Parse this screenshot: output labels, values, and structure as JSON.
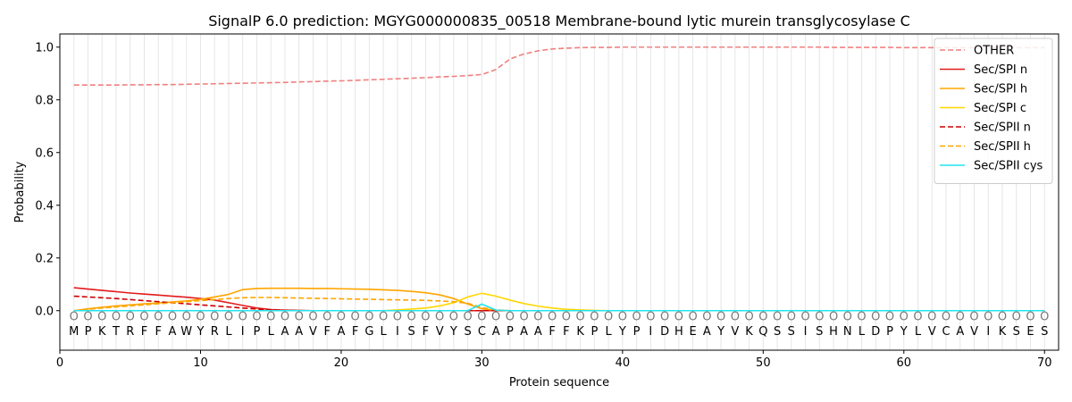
{
  "chart_data": {
    "type": "line",
    "title": "SignalP 6.0 prediction: MGYG000000835_00518 Membrane-bound lytic murein transglycosylase C",
    "xlabel": "Protein sequence",
    "ylabel": "Probability",
    "xlim": [
      0,
      71
    ],
    "ylim": [
      -0.15,
      1.05
    ],
    "xticks": [
      0,
      10,
      20,
      30,
      40,
      50,
      60,
      70
    ],
    "yticks": [
      0.0,
      0.2,
      0.4,
      0.6,
      0.8,
      1.0
    ],
    "xtick_labels": [
      "0",
      "10",
      "20",
      "30",
      "40",
      "50",
      "60",
      "70"
    ],
    "ytick_labels": [
      "0.0",
      "0.2",
      "0.4",
      "0.6",
      "0.8",
      "1.0"
    ],
    "grid": "vertical lines at each residue",
    "legend_position": "top-right",
    "sequence": [
      "M",
      "P",
      "K",
      "T",
      "R",
      "F",
      "F",
      "A",
      "W",
      "Y",
      "R",
      "L",
      "I",
      "P",
      "L",
      "A",
      "A",
      "V",
      "F",
      "A",
      "F",
      "G",
      "L",
      "I",
      "S",
      "F",
      "V",
      "Y",
      "S",
      "C",
      "A",
      "P",
      "A",
      "A",
      "F",
      "F",
      "K",
      "P",
      "L",
      "Y",
      "P",
      "I",
      "D",
      "H",
      "E",
      "A",
      "Y",
      "V",
      "K",
      "Q",
      "S",
      "S",
      "I",
      "S",
      "H",
      "N",
      "L",
      "D",
      "P",
      "Y",
      "L",
      "V",
      "C",
      "A",
      "V",
      "I",
      "K",
      "S",
      "E",
      "S"
    ],
    "predicted_classes": [
      "O",
      "O",
      "O",
      "O",
      "O",
      "O",
      "O",
      "O",
      "O",
      "O",
      "O",
      "O",
      "O",
      "O",
      "O",
      "O",
      "O",
      "O",
      "O",
      "O",
      "O",
      "O",
      "O",
      "O",
      "O",
      "O",
      "O",
      "O",
      "O",
      "O",
      "O",
      "O",
      "O",
      "O",
      "O",
      "O",
      "O",
      "O",
      "O",
      "O",
      "O",
      "O",
      "O",
      "O",
      "O",
      "O",
      "O",
      "O",
      "O",
      "O",
      "O",
      "O",
      "O",
      "O",
      "O",
      "O",
      "O",
      "O",
      "O",
      "O",
      "O",
      "O",
      "O",
      "O",
      "O",
      "O",
      "O",
      "O",
      "O",
      "O"
    ],
    "series": [
      {
        "name": "OTHER",
        "color": "#f08080",
        "dash": true,
        "values": [
          0.856,
          0.856,
          0.856,
          0.856,
          0.857,
          0.857,
          0.858,
          0.858,
          0.859,
          0.86,
          0.861,
          0.862,
          0.863,
          0.864,
          0.865,
          0.866,
          0.868,
          0.869,
          0.871,
          0.872,
          0.874,
          0.876,
          0.878,
          0.88,
          0.882,
          0.884,
          0.887,
          0.889,
          0.892,
          0.896,
          0.915,
          0.955,
          0.974,
          0.986,
          0.993,
          0.996,
          0.998,
          0.999,
          0.999,
          1.0,
          1.0,
          1.0,
          1.0,
          1.0,
          1.0,
          1.0,
          1.0,
          1.0,
          1.0,
          1.0,
          1.0,
          1.0,
          1.0,
          1.0,
          0.999,
          0.999,
          0.999,
          0.999,
          0.999,
          0.998,
          0.998,
          0.998,
          0.998,
          0.998,
          0.998,
          0.998,
          0.998,
          0.998,
          0.998,
          0.998
        ]
      },
      {
        "name": "Sec/SPI n",
        "color": "#e31a1c",
        "dash": false,
        "values": [
          0.087,
          0.082,
          0.077,
          0.072,
          0.067,
          0.063,
          0.059,
          0.055,
          0.051,
          0.046,
          0.04,
          0.03,
          0.02,
          0.01,
          0.004,
          0.002,
          0.001,
          0.0,
          0.0,
          0.0,
          0.0,
          0.0,
          0.0,
          0.0,
          0.0,
          0.0,
          0.0,
          0.0,
          0.0,
          0.0,
          0.0,
          0.0,
          0.0,
          0.0,
          0.0,
          0.0,
          0.0,
          0.0,
          0.0,
          0.0,
          0.0,
          0.0,
          0.0,
          0.0,
          0.0,
          0.0,
          0.0,
          0.0,
          0.0,
          0.0,
          0.0,
          0.0,
          0.0,
          0.0,
          0.0,
          0.0,
          0.0,
          0.0,
          0.0,
          0.0,
          0.0,
          0.0,
          0.0,
          0.0,
          0.0,
          0.0,
          0.0,
          0.0,
          0.0,
          0.0
        ]
      },
      {
        "name": "Sec/SPI h",
        "color": "#ffa500",
        "dash": false,
        "values": [
          0.0,
          0.007,
          0.013,
          0.018,
          0.022,
          0.026,
          0.029,
          0.033,
          0.037,
          0.043,
          0.052,
          0.062,
          0.08,
          0.084,
          0.085,
          0.085,
          0.085,
          0.084,
          0.084,
          0.083,
          0.082,
          0.081,
          0.079,
          0.077,
          0.073,
          0.068,
          0.06,
          0.046,
          0.025,
          0.007,
          0.002,
          0.0,
          0.0,
          0.0,
          0.0,
          0.0,
          0.0,
          0.0,
          0.0,
          0.0,
          0.0,
          0.0,
          0.0,
          0.0,
          0.0,
          0.0,
          0.0,
          0.0,
          0.0,
          0.0,
          0.0,
          0.0,
          0.0,
          0.0,
          0.0,
          0.0,
          0.0,
          0.0,
          0.0,
          0.0,
          0.0,
          0.0,
          0.0,
          0.0,
          0.0,
          0.0,
          0.0,
          0.0,
          0.0,
          0.0
        ]
      },
      {
        "name": "Sec/SPI c",
        "color": "#ffd700",
        "dash": false,
        "values": [
          0.0,
          0.0,
          0.0,
          0.0,
          0.0,
          0.0,
          0.0,
          0.0,
          0.0,
          0.0,
          0.0,
          0.0,
          0.0,
          0.0,
          0.0,
          0.0,
          0.0,
          0.0,
          0.0,
          0.0,
          0.0,
          0.0,
          0.0,
          0.003,
          0.006,
          0.01,
          0.018,
          0.03,
          0.052,
          0.066,
          0.055,
          0.04,
          0.027,
          0.017,
          0.01,
          0.005,
          0.003,
          0.001,
          0.0,
          0.0,
          0.0,
          0.0,
          0.0,
          0.0,
          0.0,
          0.0,
          0.0,
          0.0,
          0.0,
          0.0,
          0.0,
          0.0,
          0.0,
          0.0,
          0.0,
          0.0,
          0.0,
          0.0,
          0.0,
          0.0,
          0.0,
          0.0,
          0.0,
          0.0,
          0.0,
          0.0,
          0.0,
          0.0,
          0.0,
          0.0
        ]
      },
      {
        "name": "Sec/SPII n",
        "color": "#cc0000",
        "dash": true,
        "values": [
          0.055,
          0.052,
          0.049,
          0.046,
          0.042,
          0.038,
          0.034,
          0.03,
          0.026,
          0.022,
          0.018,
          0.014,
          0.01,
          0.006,
          0.003,
          0.001,
          0.0,
          0.0,
          0.0,
          0.0,
          0.0,
          0.0,
          0.0,
          0.0,
          0.0,
          0.0,
          0.0,
          0.0,
          0.0,
          0.0,
          0.0,
          0.0,
          0.0,
          0.0,
          0.0,
          0.0,
          0.0,
          0.0,
          0.0,
          0.0,
          0.0,
          0.0,
          0.0,
          0.0,
          0.0,
          0.0,
          0.0,
          0.0,
          0.0,
          0.0,
          0.0,
          0.0,
          0.0,
          0.0,
          0.0,
          0.0,
          0.0,
          0.0,
          0.0,
          0.0,
          0.0,
          0.0,
          0.0,
          0.0,
          0.0,
          0.0,
          0.0,
          0.0,
          0.0,
          0.0
        ]
      },
      {
        "name": "Sec/SPII h",
        "color": "#ffa500",
        "dash": true,
        "values": [
          0.0,
          0.005,
          0.01,
          0.014,
          0.018,
          0.022,
          0.026,
          0.03,
          0.034,
          0.038,
          0.042,
          0.046,
          0.049,
          0.05,
          0.05,
          0.049,
          0.048,
          0.047,
          0.046,
          0.045,
          0.044,
          0.043,
          0.042,
          0.041,
          0.04,
          0.039,
          0.037,
          0.034,
          0.028,
          0.012,
          0.003,
          0.0,
          0.0,
          0.0,
          0.0,
          0.0,
          0.0,
          0.0,
          0.0,
          0.0,
          0.0,
          0.0,
          0.0,
          0.0,
          0.0,
          0.0,
          0.0,
          0.0,
          0.0,
          0.0,
          0.0,
          0.0,
          0.0,
          0.0,
          0.0,
          0.0,
          0.0,
          0.0,
          0.0,
          0.0,
          0.0,
          0.0,
          0.0,
          0.0,
          0.0,
          0.0,
          0.0,
          0.0,
          0.0,
          0.0
        ]
      },
      {
        "name": "Sec/SPII cys",
        "color": "#22e5ee",
        "dash": false,
        "values": [
          0.0,
          0.0,
          0.0,
          0.0,
          0.0,
          0.0,
          0.0,
          0.0,
          0.0,
          0.0,
          0.0,
          0.0,
          0.0,
          0.0,
          0.0,
          0.0,
          0.0,
          0.0,
          0.0,
          0.0,
          0.0,
          0.0,
          0.0,
          0.0,
          0.0,
          0.0,
          0.0,
          0.0,
          0.0,
          0.025,
          0.002,
          0.0,
          0.0,
          0.0,
          0.0,
          0.0,
          0.0,
          0.0,
          0.0,
          0.0,
          0.0,
          0.0,
          0.0,
          0.0,
          0.0,
          0.0,
          0.0,
          0.0,
          0.0,
          0.0,
          0.0,
          0.0,
          0.0,
          0.0,
          0.0,
          0.0,
          0.0,
          0.0,
          0.0,
          0.0,
          0.0,
          0.0,
          0.0,
          0.0,
          0.0,
          0.0,
          0.0,
          0.0,
          0.0,
          0.0
        ]
      }
    ]
  }
}
